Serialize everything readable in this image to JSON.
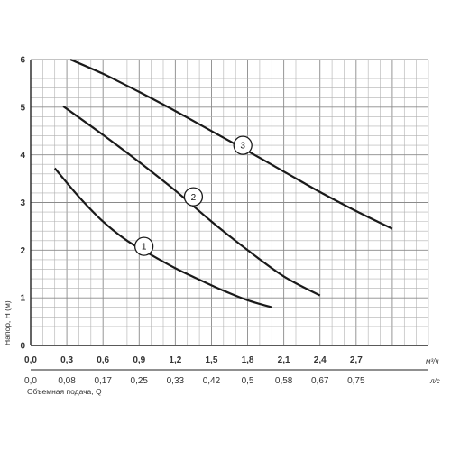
{
  "chart_data": {
    "type": "line",
    "grid": true,
    "xlim": [
      0,
      3.3
    ],
    "ylim": [
      0,
      6
    ],
    "x_ticks": [
      "0,0",
      "0,3",
      "0,6",
      "0,9",
      "1,2",
      "1,5",
      "1,8",
      "2,1",
      "2,4",
      "2,7"
    ],
    "x_ticks_secondary": [
      "0,0",
      "0,08",
      "0,17",
      "0,25",
      "0,33",
      "0,42",
      "0,5",
      "0,58",
      "0,67",
      "0,75"
    ],
    "y_ticks": [
      "0",
      "1",
      "2",
      "3",
      "4",
      "5",
      "6"
    ],
    "x_unit": "м³/ч",
    "x_unit_secondary": "л/с",
    "ylabel": "Напор, H (м)",
    "xlabel_secondary": "Объемная подача, Q",
    "series": [
      {
        "name": "1",
        "x": [
          0.2,
          0.4,
          0.6,
          0.8,
          1.0,
          1.2,
          1.4,
          1.6,
          1.8,
          2.0
        ],
        "y": [
          3.72,
          3.12,
          2.6,
          2.2,
          1.9,
          1.62,
          1.38,
          1.15,
          0.95,
          0.8
        ]
      },
      {
        "name": "2",
        "x": [
          0.27,
          0.6,
          0.9,
          1.2,
          1.5,
          1.8,
          2.1,
          2.4
        ],
        "y": [
          5.02,
          4.42,
          3.85,
          3.25,
          2.6,
          2.0,
          1.45,
          1.05
        ]
      },
      {
        "name": "3",
        "x": [
          0.33,
          0.6,
          0.9,
          1.2,
          1.5,
          1.8,
          2.1,
          2.4,
          2.7,
          3.0
        ],
        "y": [
          6.0,
          5.7,
          5.32,
          4.92,
          4.5,
          4.08,
          3.65,
          3.22,
          2.82,
          2.45
        ]
      }
    ],
    "markers": [
      {
        "label": "1",
        "x": 0.94,
        "y": 2.08
      },
      {
        "label": "2",
        "x": 1.35,
        "y": 3.12
      },
      {
        "label": "3",
        "x": 1.76,
        "y": 4.2
      }
    ]
  },
  "colors": {
    "line": "#1a1a1a",
    "grid_minor": "#b0b0b0",
    "grid_major": "#8a8a8a",
    "axis": "#222222",
    "text": "#333333"
  }
}
